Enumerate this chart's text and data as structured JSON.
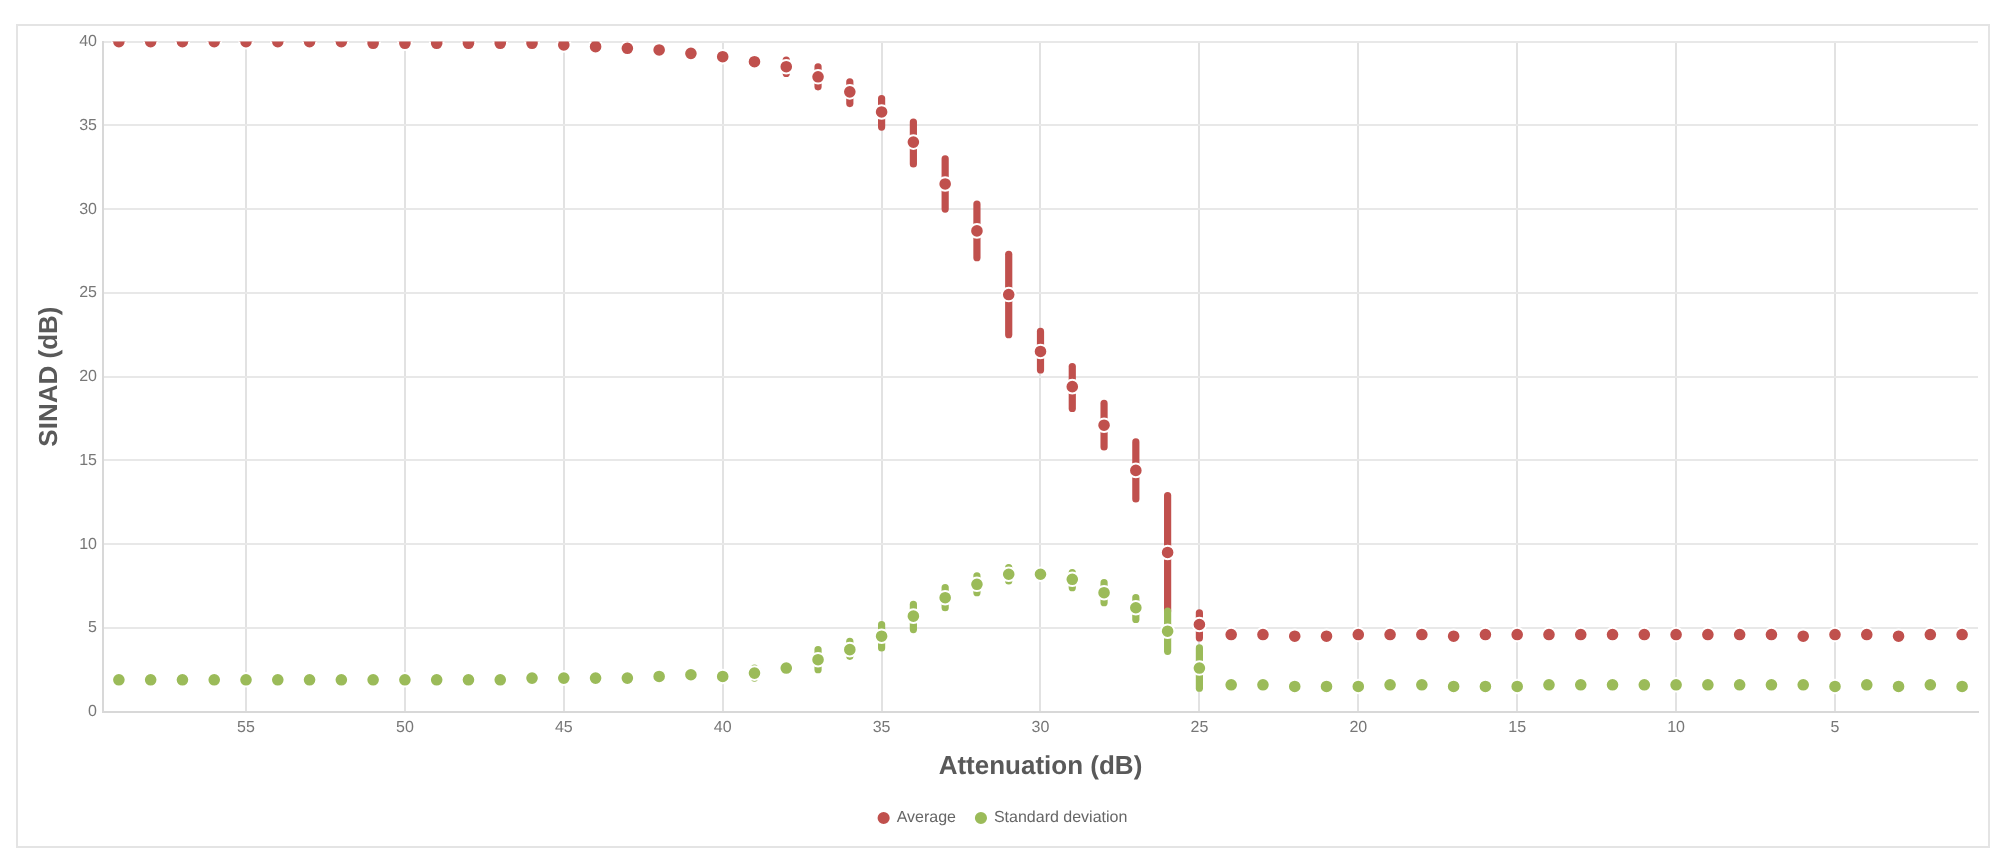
{
  "chart_data": {
    "type": "scatter",
    "xlabel": "Attenuation (dB)",
    "ylabel": "SINAD (dB)",
    "x": [
      59,
      58,
      57,
      56,
      55,
      54,
      53,
      52,
      51,
      50,
      49,
      48,
      47,
      46,
      45,
      44,
      43,
      42,
      41,
      40,
      39,
      38,
      37,
      36,
      35,
      34,
      33,
      32,
      31,
      30,
      29,
      28,
      27,
      26,
      25,
      24,
      23,
      22,
      21,
      20,
      19,
      18,
      17,
      16,
      15,
      14,
      13,
      12,
      11,
      10,
      9,
      8,
      7,
      6,
      5,
      4,
      3,
      2,
      1
    ],
    "series": [
      {
        "name": "Average",
        "color": "#c0504d",
        "values": [
          40,
          40,
          40,
          40,
          40,
          40,
          40,
          40,
          39.9,
          39.9,
          39.9,
          39.9,
          39.9,
          39.9,
          39.8,
          39.7,
          39.6,
          39.5,
          39.3,
          39.1,
          38.8,
          38.5,
          37.9,
          37.0,
          35.8,
          34.0,
          31.5,
          28.7,
          24.9,
          21.5,
          19.4,
          17.1,
          14.4,
          9.5,
          5.2,
          4.6,
          4.6,
          4.5,
          4.5,
          4.6,
          4.6,
          4.6,
          4.5,
          4.6,
          4.6,
          4.6,
          4.6,
          4.6,
          4.6,
          4.6,
          4.6,
          4.6,
          4.6,
          4.5,
          4.6,
          4.6,
          4.5,
          4.6,
          4.6
        ],
        "errors": [
          null,
          null,
          null,
          null,
          null,
          null,
          null,
          null,
          null,
          null,
          null,
          null,
          null,
          null,
          null,
          null,
          null,
          null,
          null,
          null,
          [
            38.6,
            39.0
          ],
          [
            38.1,
            38.9
          ],
          [
            37.3,
            38.5
          ],
          [
            36.3,
            37.6
          ],
          [
            34.9,
            36.6
          ],
          [
            32.7,
            35.2
          ],
          [
            30.0,
            33.0
          ],
          [
            27.1,
            30.3
          ],
          [
            22.5,
            27.3
          ],
          [
            20.4,
            22.7
          ],
          [
            18.1,
            20.6
          ],
          [
            15.8,
            18.4
          ],
          [
            12.7,
            16.1
          ],
          [
            6.0,
            12.9
          ],
          [
            4.4,
            5.9
          ],
          null,
          null,
          null,
          null,
          null,
          null,
          null,
          null,
          null,
          null,
          null,
          null,
          null,
          null,
          null,
          null,
          null,
          null,
          null,
          null,
          null,
          null,
          null,
          null
        ]
      },
      {
        "name": "Standard deviation",
        "color": "#9bbb59",
        "values": [
          1.9,
          1.9,
          1.9,
          1.9,
          1.9,
          1.9,
          1.9,
          1.9,
          1.9,
          1.9,
          1.9,
          1.9,
          1.9,
          2.0,
          2.0,
          2.0,
          2.0,
          2.1,
          2.2,
          2.1,
          2.3,
          2.6,
          3.1,
          3.7,
          4.5,
          5.7,
          6.8,
          7.6,
          8.2,
          8.2,
          7.9,
          7.1,
          6.2,
          4.8,
          2.6,
          1.6,
          1.6,
          1.5,
          1.5,
          1.5,
          1.6,
          1.6,
          1.5,
          1.5,
          1.5,
          1.6,
          1.6,
          1.6,
          1.6,
          1.6,
          1.6,
          1.6,
          1.6,
          1.6,
          1.5,
          1.6,
          1.5,
          1.6,
          1.5
        ],
        "errors": [
          null,
          null,
          null,
          null,
          null,
          null,
          null,
          null,
          null,
          null,
          null,
          null,
          null,
          null,
          null,
          null,
          null,
          null,
          null,
          null,
          [
            2.0,
            2.6
          ],
          [
            2.4,
            2.8
          ],
          [
            2.5,
            3.7
          ],
          [
            3.3,
            4.2
          ],
          [
            3.8,
            5.2
          ],
          [
            4.9,
            6.4
          ],
          [
            6.2,
            7.4
          ],
          [
            7.1,
            8.1
          ],
          [
            7.8,
            8.6
          ],
          null,
          [
            7.4,
            8.3
          ],
          [
            6.5,
            7.7
          ],
          [
            5.5,
            6.8
          ],
          [
            3.6,
            6.0
          ],
          [
            1.4,
            3.8
          ],
          null,
          null,
          null,
          null,
          null,
          null,
          null,
          null,
          null,
          null,
          null,
          null,
          null,
          null,
          null,
          null,
          null,
          null,
          null,
          null,
          null,
          null,
          null,
          null
        ]
      }
    ],
    "xlim": [
      59.5,
      0.5
    ],
    "xticks": [
      55,
      50,
      45,
      40,
      35,
      30,
      25,
      20,
      15,
      10,
      5
    ],
    "ylim": [
      0,
      40
    ],
    "yticks": [
      0,
      5,
      10,
      15,
      20,
      25,
      30,
      35,
      40
    ],
    "grid": true,
    "legend": "bottom",
    "marker": "circle"
  }
}
